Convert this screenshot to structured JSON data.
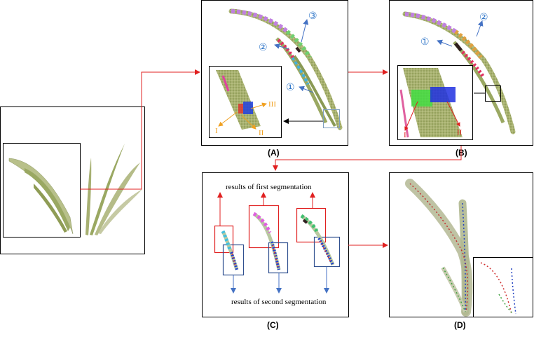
{
  "panels": {
    "a": {
      "label": "(A)"
    },
    "b": {
      "label": "(B)"
    },
    "c": {
      "label": "(C)"
    },
    "d": {
      "label": "(D)"
    }
  },
  "markers": {
    "one": "①",
    "two": "②",
    "three": "③",
    "roman_i": "I",
    "roman_ii": "II",
    "roman_iii": "III"
  },
  "annotations": {
    "first_segmentation": "results of first segmentation",
    "second_segmentation": "results of second segmentation"
  },
  "colors": {
    "red_arrow": "#e02020",
    "blue_arrow": "#4472c4",
    "orange_arrow": "#f0a020",
    "leaf": "#9aa860",
    "marker_blue": "#2e75c8"
  }
}
